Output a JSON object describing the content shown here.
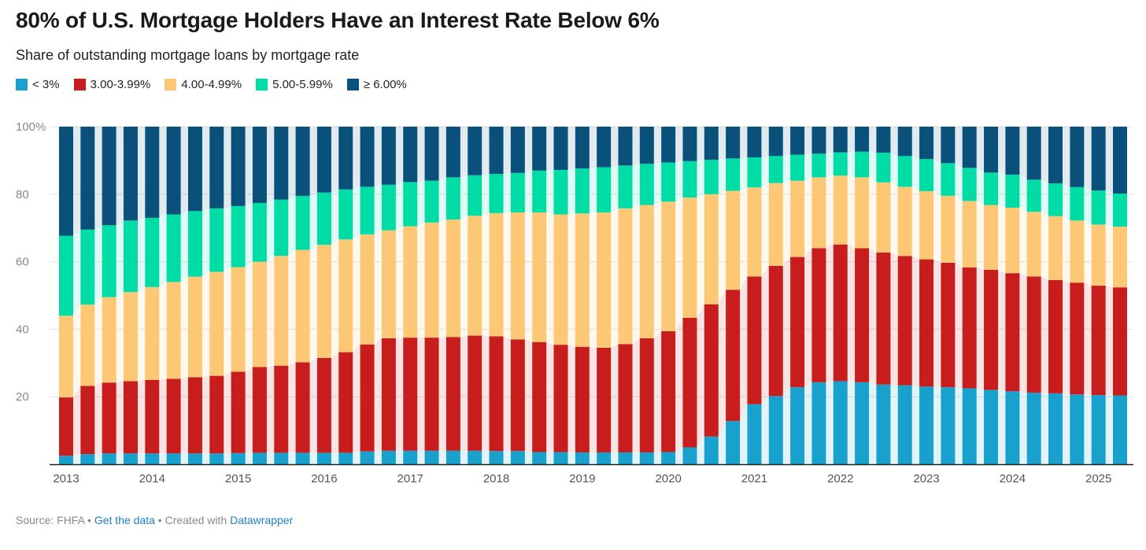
{
  "title": "80% of U.S. Mortgage Holders Have an Interest Rate Below 6%",
  "subtitle": "Share of outstanding mortgage loans by mortgage rate",
  "footer": {
    "source": "Source: FHFA",
    "sep1": " • ",
    "get_data": "Get the data",
    "sep2": " • Created with ",
    "datawrapper": "Datawrapper"
  },
  "chart_data": {
    "type": "bar",
    "stacked": true,
    "title": "80% of U.S. Mortgage Holders Have an Interest Rate Below 6%",
    "ylabel": "",
    "xlabel": "",
    "ylim": [
      0,
      100
    ],
    "yticks": [
      "100%",
      "80",
      "60",
      "40",
      "20"
    ],
    "ytick_values": [
      100,
      80,
      60,
      40,
      20
    ],
    "xticks": [
      "2013",
      "2014",
      "2015",
      "2016",
      "2017",
      "2018",
      "2019",
      "2020",
      "2021",
      "2022",
      "2023",
      "2024",
      "2025"
    ],
    "legend_position": "top-left",
    "categories": [
      "2013 Q1",
      "2013 Q2",
      "2013 Q3",
      "2013 Q4",
      "2014 Q1",
      "2014 Q2",
      "2014 Q3",
      "2014 Q4",
      "2015 Q1",
      "2015 Q2",
      "2015 Q3",
      "2015 Q4",
      "2016 Q1",
      "2016 Q2",
      "2016 Q3",
      "2016 Q4",
      "2017 Q1",
      "2017 Q2",
      "2017 Q3",
      "2017 Q4",
      "2018 Q1",
      "2018 Q2",
      "2018 Q3",
      "2018 Q4",
      "2019 Q1",
      "2019 Q2",
      "2019 Q3",
      "2019 Q4",
      "2020 Q1",
      "2020 Q2",
      "2020 Q3",
      "2020 Q4",
      "2021 Q1",
      "2021 Q2",
      "2021 Q3",
      "2021 Q4",
      "2022 Q1",
      "2022 Q2",
      "2022 Q3",
      "2022 Q4",
      "2023 Q1",
      "2023 Q2",
      "2023 Q3",
      "2023 Q4",
      "2024 Q1",
      "2024 Q2",
      "2024 Q3",
      "2024 Q4",
      "2025 Q1",
      "2025 Q2"
    ],
    "series": [
      {
        "name": "< 3%",
        "color": "#18a1cd",
        "values": [
          2.5,
          3,
          3.2,
          3.2,
          3.2,
          3.2,
          3.2,
          3.2,
          3.3,
          3.4,
          3.4,
          3.4,
          3.4,
          3.4,
          3.8,
          4,
          4,
          4,
          4,
          4,
          3.9,
          3.9,
          3.6,
          3.6,
          3.5,
          3.5,
          3.5,
          3.5,
          3.6,
          5,
          8.2,
          12.8,
          17.8,
          20.2,
          22.8,
          24.3,
          24.6,
          24.3,
          23.6,
          23.4,
          23,
          22.8,
          22.5,
          22,
          21.6,
          21.2,
          21,
          20.7,
          20.5,
          20.4
        ]
      },
      {
        "name": "3.00-3.99%",
        "color": "#c71e1d",
        "values": [
          17.3,
          20.2,
          21,
          21.4,
          21.8,
          22.1,
          22.6,
          23,
          24.1,
          25.4,
          25.8,
          26.8,
          28.1,
          29.8,
          31.7,
          33.3,
          33.5,
          33.5,
          33.7,
          34.1,
          34,
          33.1,
          32.6,
          31.8,
          31.3,
          31,
          32.1,
          33.8,
          35.8,
          38.4,
          39.2,
          38.9,
          37.8,
          38.6,
          38.6,
          39.7,
          40.5,
          39.7,
          39.1,
          38.3,
          37.7,
          36.9,
          35.8,
          35.6,
          35,
          34.4,
          33.6,
          33.1,
          32.4,
          32
        ]
      },
      {
        "name": "4.00-4.99%",
        "color": "#fdc875",
        "values": [
          24.2,
          24.1,
          25.3,
          26.4,
          27.5,
          28.7,
          29.8,
          30.8,
          31,
          31.2,
          32.5,
          33.3,
          33.5,
          33.4,
          32.6,
          32,
          33,
          34.1,
          34.8,
          35.5,
          36.5,
          37.6,
          38.4,
          38.6,
          39.5,
          40.1,
          40.2,
          39.5,
          38.4,
          35.6,
          32.6,
          29.3,
          26.4,
          24.5,
          22.6,
          21,
          20.4,
          21,
          20.8,
          20.5,
          20.2,
          19.8,
          19.7,
          19.2,
          19.4,
          19.2,
          18.9,
          18.4,
          18.1,
          18
        ]
      },
      {
        "name": "5.00-5.99%",
        "color": "#00dca6",
        "values": [
          23.7,
          22.2,
          21.3,
          21.2,
          20.5,
          20,
          19.4,
          18.8,
          18.1,
          17.4,
          16.7,
          16,
          15.5,
          14.8,
          14.1,
          13.5,
          13.1,
          12.4,
          12.5,
          12,
          11.6,
          11.7,
          12.4,
          13.2,
          13.3,
          13.4,
          12.7,
          12.2,
          11.6,
          10.8,
          10.2,
          9.6,
          8.9,
          8,
          7.7,
          7,
          6.9,
          7.6,
          8.8,
          9.1,
          9.5,
          9.7,
          9.8,
          9.6,
          9.8,
          9.5,
          9.7,
          9.9,
          10.1,
          9.8
        ]
      },
      {
        "name": "≥ 6.00%",
        "color": "#09517b",
        "values": [
          32.3,
          30.5,
          29.2,
          27.8,
          27,
          26,
          25,
          24.2,
          23.5,
          22.6,
          21.6,
          20.5,
          19.5,
          18.6,
          17.8,
          17.2,
          16.4,
          16,
          15,
          14.4,
          14,
          13.7,
          13,
          12.8,
          12.4,
          12,
          11.5,
          11,
          10.6,
          10.2,
          9.8,
          9.4,
          9.1,
          8.7,
          8.3,
          8,
          7.6,
          7.4,
          7.7,
          8.7,
          9.6,
          10.8,
          12.2,
          13.6,
          14.2,
          15.7,
          16.8,
          17.9,
          18.9,
          19.8
        ]
      }
    ]
  }
}
